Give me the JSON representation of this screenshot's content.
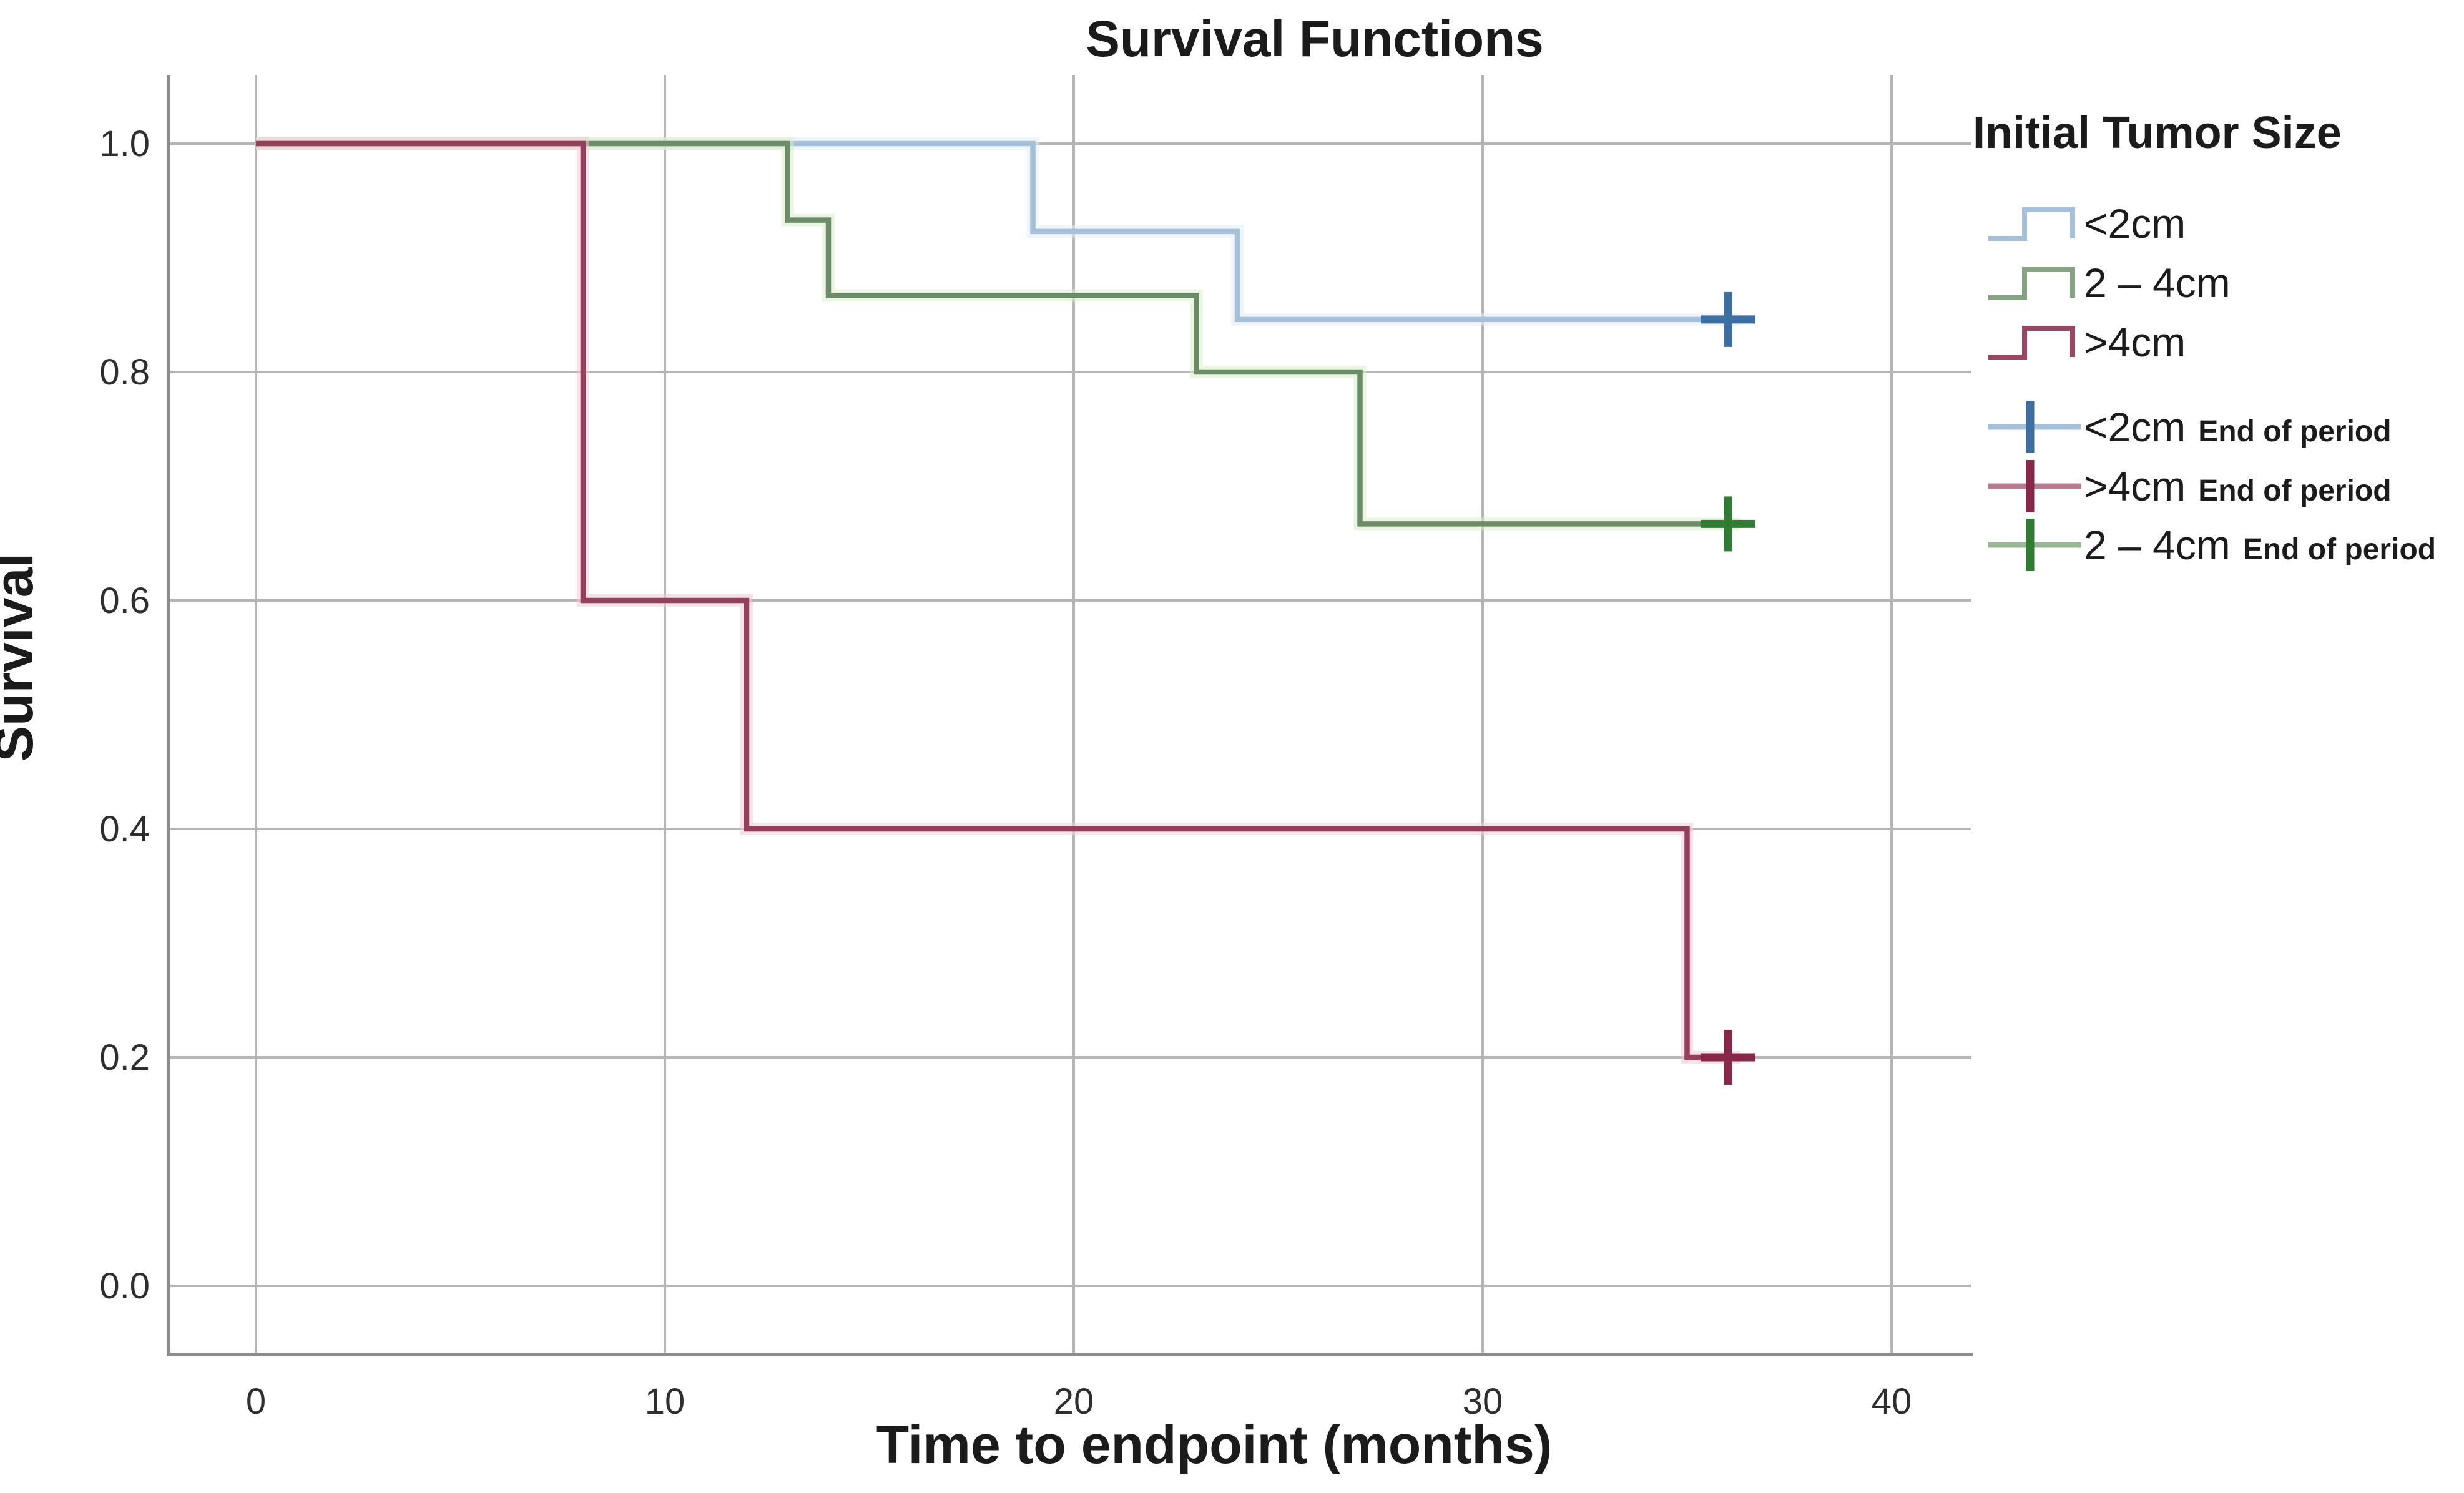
{
  "title": "Survival Functions",
  "axes": {
    "x_label": "Time to endpoint (months)",
    "y_label": "Survival"
  },
  "legend": {
    "title": "Initial Tumor Size",
    "line_entries": [
      {
        "label": "<2cm",
        "color": "#a6c0da"
      },
      {
        "label": "2 – 4cm",
        "color": "#86a383"
      },
      {
        "label": ">4cm",
        "color": "#9c4663"
      }
    ],
    "censor_entries": [
      {
        "label": "<2cm",
        "suffix": "End of period",
        "line_color": "#a6c0da",
        "plus_color": "#3e6fa3"
      },
      {
        "label": ">4cm",
        "suffix": "End of period",
        "line_color": "#b87b91",
        "plus_color": "#87284a"
      },
      {
        "label": "2 – 4cm",
        "suffix": "End of period",
        "line_color": "#9ab795",
        "plus_color": "#2e7d32"
      }
    ]
  },
  "chart_data": {
    "type": "line",
    "subtype": "kaplan-meier-step-survival",
    "title": "Survival Functions",
    "xlabel": "Time to endpoint (months)",
    "ylabel": "Survival",
    "xlim": [
      -2.2,
      42.2
    ],
    "ylim": [
      -0.06,
      1.06
    ],
    "x_ticks": [
      0,
      10,
      20,
      30,
      40
    ],
    "x_tick_labels": [
      "0",
      "10",
      "20",
      "30",
      "40"
    ],
    "y_ticks": [
      1.0,
      0.8,
      0.6,
      0.4,
      0.2,
      0.0
    ],
    "y_tick_labels": [
      "1.0",
      "0.8",
      "0.6",
      "0.4",
      "0.2",
      "0.0"
    ],
    "grid": true,
    "legend_position": "right",
    "legend_title": "Initial Tumor Size",
    "series": [
      {
        "name": "<2cm",
        "color": "#a6c0da",
        "glow": "#e2edf7",
        "censor_color": "#3e6fa3",
        "steps": [
          [
            0,
            1.0
          ],
          [
            19,
            1.0
          ],
          [
            19,
            0.923
          ],
          [
            24,
            0.923
          ],
          [
            24,
            0.846
          ],
          [
            36.3,
            0.846
          ]
        ],
        "censored_at": [
          [
            36,
            0.846
          ]
        ]
      },
      {
        "name": "2 – 4cm",
        "color": "#6c8b69",
        "glow": "#d8efc6",
        "censor_color": "#2e7d32",
        "steps": [
          [
            0,
            1.0
          ],
          [
            13,
            1.0
          ],
          [
            13,
            0.933
          ],
          [
            14,
            0.933
          ],
          [
            14,
            0.867
          ],
          [
            23,
            0.867
          ],
          [
            23,
            0.8
          ],
          [
            27,
            0.8
          ],
          [
            27,
            0.667
          ],
          [
            36.3,
            0.667
          ]
        ],
        "censored_at": [
          [
            36,
            0.667
          ]
        ]
      },
      {
        "name": ">4cm",
        "color": "#953f5c",
        "glow": "#f3c9d6",
        "censor_color": "#87284a",
        "steps": [
          [
            0,
            1.0
          ],
          [
            8,
            1.0
          ],
          [
            8,
            0.6
          ],
          [
            12,
            0.6
          ],
          [
            12,
            0.4
          ],
          [
            35,
            0.4
          ],
          [
            35,
            0.2
          ],
          [
            36.3,
            0.2
          ]
        ],
        "censored_at": [
          [
            36,
            0.2
          ]
        ]
      }
    ]
  }
}
